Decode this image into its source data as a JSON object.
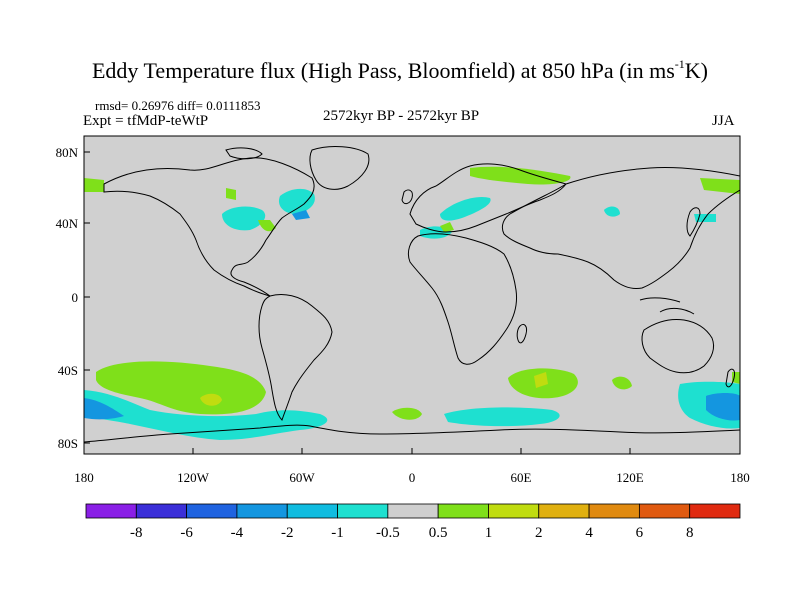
{
  "title": {
    "main": "Eddy Temperature flux (High Pass, Bloomfield) at 850 hPa (in ms",
    "sup": "-1",
    "end": "K)"
  },
  "stats": "rmsd= 0.26976 diff= 0.0111853",
  "experiment": "Expt = tfMdP-teWtP",
  "period": "2572kyr BP - 2572kyr BP",
  "season": "JJA",
  "lat_labels": [
    "80N",
    "40N",
    "0",
    "40S",
    "80S"
  ],
  "lon_labels": [
    "180",
    "120W",
    "60W",
    "0",
    "60E",
    "120E",
    "180"
  ],
  "colorbar": {
    "labels": [
      "-8",
      "-6",
      "-4",
      "-2",
      "-1",
      "-0.5",
      "0.5",
      "1",
      "2",
      "4",
      "6",
      "8"
    ],
    "colors": [
      "#8a1fe6",
      "#3b2fd8",
      "#1f63e0",
      "#1496e0",
      "#10bce0",
      "#1ee0d0",
      "#cfcfcf",
      "#7fe01a",
      "#c0dc10",
      "#e0b010",
      "#e08a10",
      "#e05a10",
      "#e02a10"
    ]
  },
  "colors": {
    "ocean_land_fill": "#d0d0d0",
    "coast": "#000000"
  }
}
